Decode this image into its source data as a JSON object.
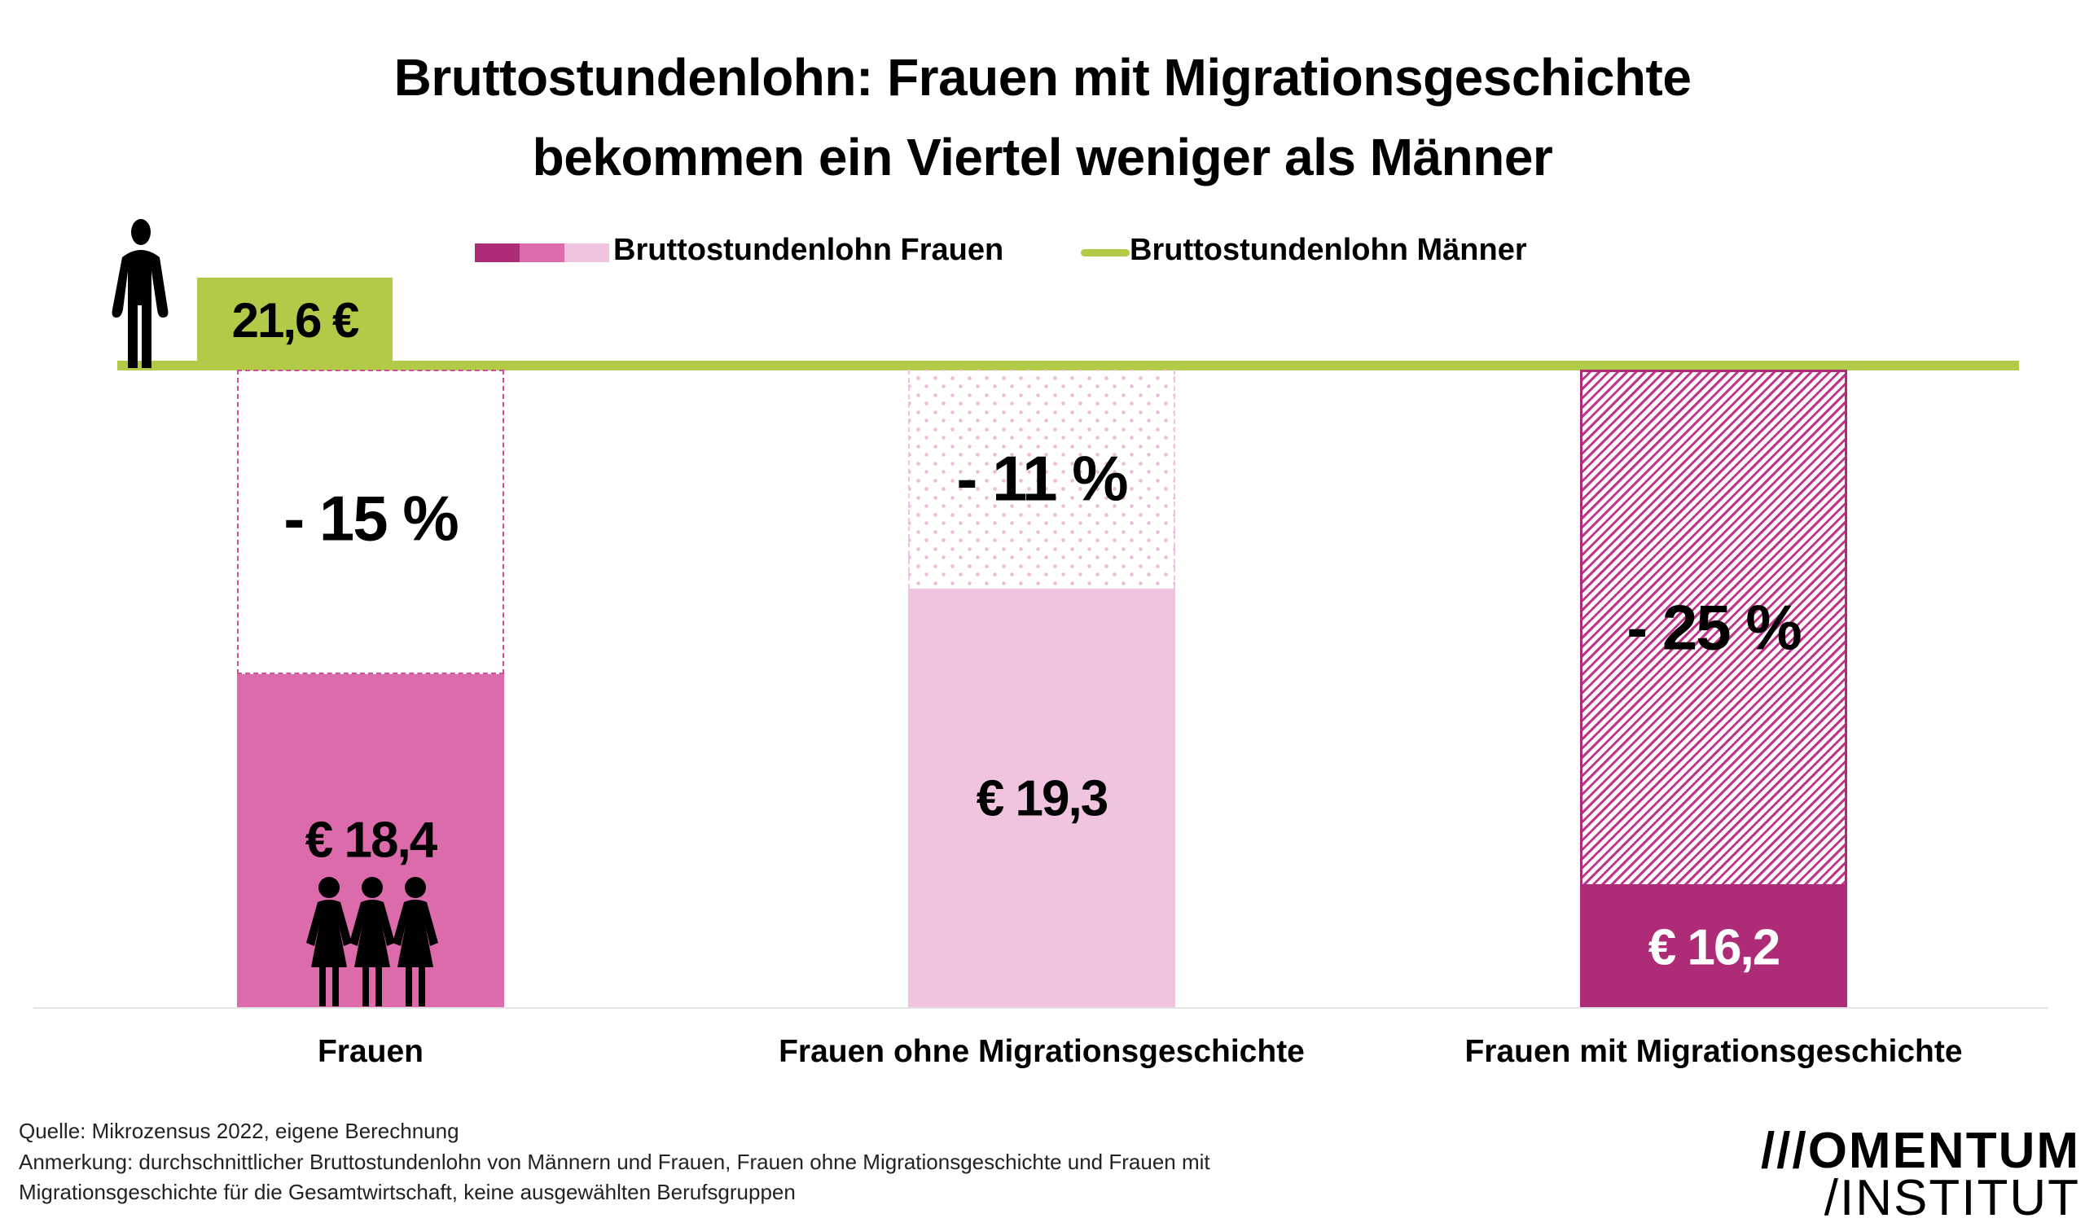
{
  "title_line1": "Bruttostundenlohn: Frauen mit Migrationsgeschichte",
  "title_line2": "bekommen ein Viertel weniger als Männer",
  "legend": {
    "women": "Bruttostundenlohn Frauen",
    "men": "Bruttostundenlohn Männer"
  },
  "colors": {
    "green": "#b1ca47",
    "dark": "#ae2b78",
    "mid": "#db6bab",
    "light": "#f0c3df"
  },
  "chart_data": {
    "type": "bar",
    "title": "Bruttostundenlohn: Frauen mit Migrationsgeschichte bekommen ein Viertel weniger als Männer",
    "categories": [
      "Frauen",
      "Frauen ohne Migrationsgeschichte",
      "Frauen mit Migrationsgeschichte"
    ],
    "values": [
      18.4,
      19.3,
      16.2
    ],
    "value_labels": [
      "€ 18,4",
      "€ 19,3",
      "€ 16,2"
    ],
    "gap_labels": [
      "- 15 %",
      "- 11 %",
      "- 25 %"
    ],
    "reference": {
      "name": "Bruttostundenlohn Männer",
      "value": 21.6,
      "label": "21,6 €"
    },
    "ylim": [
      14.9,
      21.6
    ],
    "xlabel": "",
    "ylabel": "",
    "grid": false,
    "legend": "top"
  },
  "footer": {
    "source": "Quelle: Mikrozensus 2022, eigene Berechnung",
    "note1": "Anmerkung: durchschnittlicher Bruttostundenlohn  von Männern und Frauen, Frauen ohne Migrationsgeschichte und Frauen mit",
    "note2": "Migrationsgeschichte für die Gesamtwirtschaft, keine ausgewählten Berufsgruppen"
  },
  "logo": {
    "line1": "///OMENTUM",
    "line2": "/INSTITUT"
  }
}
